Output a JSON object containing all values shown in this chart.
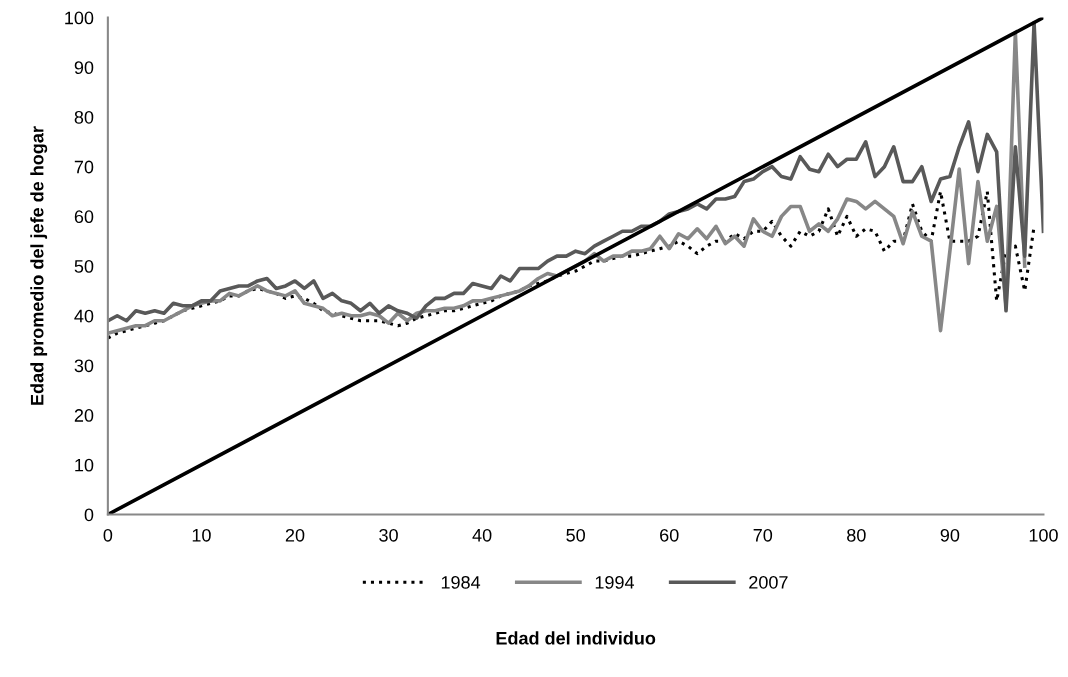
{
  "chart_data": {
    "type": "line",
    "xlabel": "Edad del individuo",
    "ylabel": "Edad promedio del jefe de hogar",
    "xlim": [
      0,
      100
    ],
    "ylim": [
      0,
      100
    ],
    "xticks": [
      0,
      10,
      20,
      30,
      40,
      50,
      60,
      70,
      80,
      90,
      100
    ],
    "yticks": [
      0,
      10,
      20,
      30,
      40,
      50,
      60,
      70,
      80,
      90,
      100
    ],
    "grid": false,
    "legend": "bottom",
    "marker": "none",
    "x": [
      0,
      1,
      2,
      3,
      4,
      5,
      6,
      7,
      8,
      9,
      10,
      11,
      12,
      13,
      14,
      15,
      16,
      17,
      18,
      19,
      20,
      21,
      22,
      23,
      24,
      25,
      26,
      27,
      28,
      29,
      30,
      31,
      32,
      33,
      34,
      35,
      36,
      37,
      38,
      39,
      40,
      41,
      42,
      43,
      44,
      45,
      46,
      47,
      48,
      49,
      50,
      51,
      52,
      53,
      54,
      55,
      56,
      57,
      58,
      59,
      60,
      61,
      62,
      63,
      64,
      65,
      66,
      67,
      68,
      69,
      70,
      71,
      72,
      73,
      74,
      75,
      76,
      77,
      78,
      79,
      80,
      81,
      82,
      83,
      84,
      85,
      86,
      87,
      88,
      89,
      90,
      91,
      92,
      93,
      94,
      95,
      96,
      97,
      98,
      99,
      100
    ],
    "series": [
      {
        "name": "1984",
        "color": "#000000",
        "line_style": "dotted",
        "values": [
          35.5,
          36.5,
          37,
          37.5,
          38,
          38.5,
          39,
          40,
          41,
          41.5,
          42,
          42.5,
          43,
          44,
          44,
          45,
          45.5,
          45,
          44.5,
          43.5,
          44,
          43.5,
          42.5,
          41,
          40.5,
          40,
          39.5,
          39,
          39,
          39,
          38.5,
          38,
          38.5,
          39.5,
          40,
          40.5,
          41,
          41,
          41.5,
          42,
          42.5,
          43,
          44,
          44.5,
          45,
          46,
          46.5,
          47,
          48,
          48.5,
          49,
          50,
          51,
          51,
          51.5,
          52,
          52,
          52.5,
          53,
          53.5,
          54,
          55,
          54,
          52.5,
          54,
          55,
          55,
          56.5,
          55.5,
          57,
          57,
          59,
          56,
          54,
          57,
          56,
          57,
          61.5,
          56,
          60,
          56,
          57.5,
          57,
          53,
          55,
          55,
          62.5,
          57,
          55,
          65,
          55,
          55,
          55,
          56,
          65,
          43,
          53,
          54,
          45,
          58,
          null
        ]
      },
      {
        "name": "1994",
        "color": "#878787",
        "line_style": "solid",
        "values": [
          36.5,
          37,
          37.5,
          38,
          38,
          39,
          39,
          40,
          41,
          42,
          42.5,
          43,
          43,
          44.5,
          44,
          45,
          46,
          45,
          44.5,
          44,
          45,
          42.5,
          42,
          41.5,
          40,
          40.5,
          40,
          40,
          40.5,
          40,
          38.5,
          40.5,
          39,
          40.5,
          41,
          41,
          41.5,
          41.5,
          42,
          43,
          43,
          43.5,
          44,
          44.5,
          45,
          46,
          47.5,
          48.5,
          48,
          49,
          50,
          51,
          52.5,
          51,
          52,
          52,
          53,
          53,
          53.5,
          56,
          53.5,
          56.5,
          55.5,
          57.5,
          55.5,
          58,
          54.5,
          56,
          54,
          59.5,
          57,
          56,
          60,
          62,
          62,
          57,
          58.5,
          57,
          59.5,
          63.5,
          63,
          61.5,
          63,
          61.5,
          60,
          54.5,
          61,
          56,
          55,
          37,
          53,
          69.5,
          50.5,
          67,
          55,
          62,
          42,
          97,
          50,
          null,
          null
        ]
      },
      {
        "name": "2007",
        "color": "#595959",
        "line_style": "solid",
        "values": [
          39,
          40,
          39,
          41,
          40.5,
          41,
          40.5,
          42.5,
          42,
          42,
          43,
          43,
          45,
          45.5,
          46,
          46,
          47,
          47.5,
          45.5,
          46,
          47,
          45.5,
          47,
          43.5,
          44.5,
          43,
          42.5,
          41,
          42.5,
          40.5,
          42,
          41,
          40.5,
          39.5,
          42,
          43.5,
          43.5,
          44.5,
          44.5,
          46.5,
          46,
          45.5,
          48,
          47,
          49.5,
          49.5,
          49.5,
          51,
          52,
          52,
          53,
          52.5,
          54,
          55,
          56,
          57,
          57,
          58,
          58,
          59,
          60.5,
          61,
          61.5,
          62.5,
          61.5,
          63.5,
          63.5,
          64,
          67,
          67.5,
          69,
          70,
          68,
          67.5,
          72,
          69.5,
          69,
          72.5,
          70,
          71.5,
          71.5,
          75,
          68,
          70,
          74,
          67,
          67,
          70,
          63,
          67.5,
          68,
          74,
          79,
          69,
          76.5,
          73,
          41,
          74,
          52,
          99,
          57
        ]
      },
      {
        "x": [
          0,
          100
        ],
        "color": "#000000",
        "line_style": "solid",
        "values": [
          0,
          100
        ]
      }
    ]
  }
}
